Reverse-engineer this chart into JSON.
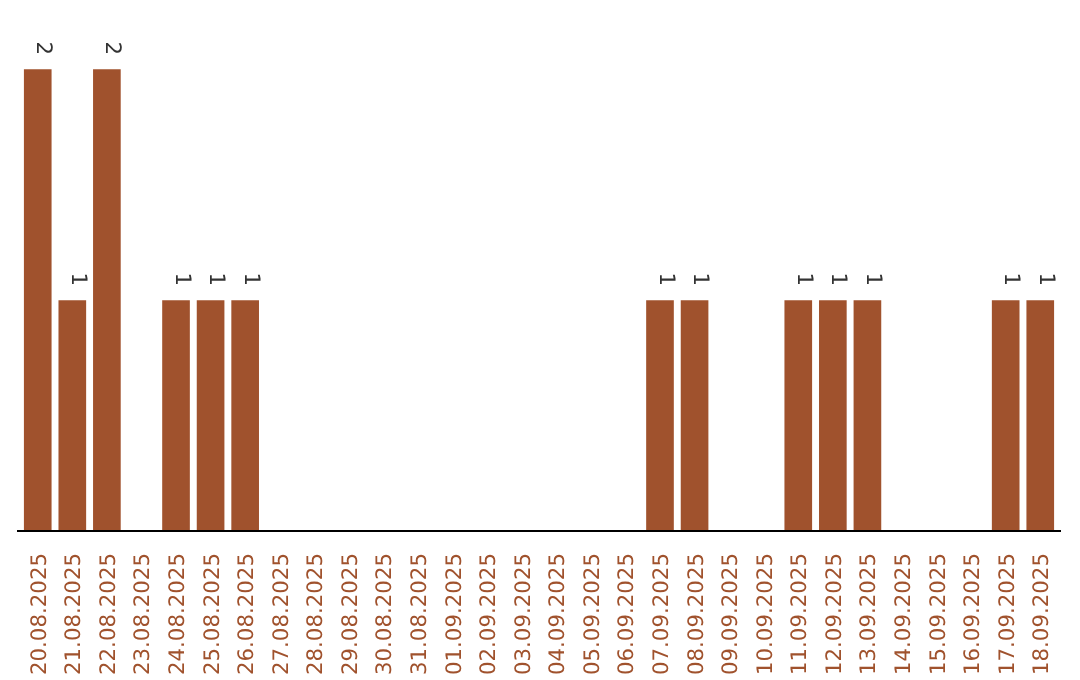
{
  "chart_data": {
    "type": "bar",
    "categories": [
      "20.08.2025",
      "21.08.2025",
      "22.08.2025",
      "23.08.2025",
      "24.08.2025",
      "25.08.2025",
      "26.08.2025",
      "27.08.2025",
      "28.08.2025",
      "29.08.2025",
      "30.08.2025",
      "31.08.2025",
      "01.09.2025",
      "02.09.2025",
      "03.09.2025",
      "04.09.2025",
      "05.09.2025",
      "06.09.2025",
      "07.09.2025",
      "08.09.2025",
      "09.09.2025",
      "10.09.2025",
      "11.09.2025",
      "12.09.2025",
      "13.09.2025",
      "14.09.2025",
      "15.09.2025",
      "16.09.2025",
      "17.09.2025",
      "18.09.2025"
    ],
    "values": [
      2,
      1,
      2,
      0,
      1,
      1,
      1,
      0,
      0,
      0,
      0,
      0,
      0,
      0,
      0,
      0,
      0,
      0,
      1,
      1,
      0,
      0,
      1,
      1,
      1,
      0,
      0,
      0,
      1,
      1
    ],
    "value_labels": [
      "2",
      "1",
      "2",
      null,
      "1",
      "1",
      "1",
      null,
      null,
      null,
      null,
      null,
      null,
      null,
      null,
      null,
      null,
      null,
      "1",
      "1",
      null,
      null,
      "1",
      "1",
      "1",
      null,
      null,
      null,
      "1",
      "1"
    ],
    "color": "#a0522d",
    "grid": false
  }
}
